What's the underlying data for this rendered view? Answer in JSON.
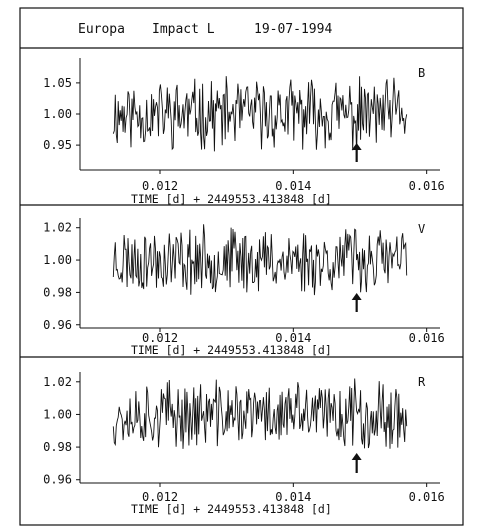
{
  "header": {
    "target": "Europa",
    "event": "Impact L",
    "date": "19-07-1994"
  },
  "chart_data": [
    {
      "type": "line",
      "band": "B",
      "xlabel": "TIME [d] + 2449553.413848 [d]",
      "x_ticks": [
        "0.012",
        "0.014",
        "0.016"
      ],
      "x_tick_values": [
        0.012,
        0.014,
        0.016
      ],
      "xlim": [
        0.0108,
        0.0162
      ],
      "y_ticks": [
        "1.05",
        "1.00",
        "0.95"
      ],
      "y_tick_values": [
        1.05,
        1.0,
        0.95
      ],
      "ylim": [
        0.91,
        1.09
      ],
      "series": [
        {
          "x_start": 0.0113,
          "x_end": 0.0157,
          "n_points": 300,
          "mean": 1.0,
          "amplitude": 0.06,
          "seed": 11,
          "dip": {
            "x": 0.01495,
            "value": 0.935
          }
        }
      ],
      "annotation": {
        "type": "arrow",
        "x": 0.01495
      },
      "grid": false
    },
    {
      "type": "line",
      "band": "V",
      "xlabel": "TIME [d] + 2449553.413848 [d]",
      "x_ticks": [
        "0.012",
        "0.014",
        "0.016"
      ],
      "x_tick_values": [
        0.012,
        0.014,
        0.016
      ],
      "xlim": [
        0.0108,
        0.0162
      ],
      "y_ticks": [
        "1.02",
        "1.00",
        "0.98",
        "0.96"
      ],
      "y_tick_values": [
        1.02,
        1.0,
        0.98,
        0.96
      ],
      "ylim": [
        0.958,
        1.026
      ],
      "series": [
        {
          "x_start": 0.0113,
          "x_end": 0.0157,
          "n_points": 300,
          "mean": 1.0,
          "amplitude": 0.022,
          "seed": 23,
          "spike": {
            "x": 0.01492,
            "value": 1.019
          }
        }
      ],
      "annotation": {
        "type": "arrow",
        "x": 0.01495
      },
      "grid": false
    },
    {
      "type": "line",
      "band": "R",
      "xlabel": "TIME [d] + 2449553.413848 [d]",
      "x_ticks": [
        "0.012",
        "0.014",
        "0.016"
      ],
      "x_tick_values": [
        0.012,
        0.014,
        0.016
      ],
      "xlim": [
        0.0108,
        0.0162
      ],
      "y_ticks": [
        "1.02",
        "1.00",
        "0.98",
        "0.96"
      ],
      "y_tick_values": [
        1.02,
        1.0,
        0.98,
        0.96
      ],
      "ylim": [
        0.958,
        1.026
      ],
      "series": [
        {
          "x_start": 0.0113,
          "x_end": 0.0157,
          "n_points": 300,
          "mean": 1.0,
          "amplitude": 0.022,
          "seed": 37,
          "spike": {
            "x": 0.01492,
            "value": 1.022
          }
        }
      ],
      "annotation": {
        "type": "arrow",
        "x": 0.01495
      },
      "grid": false
    }
  ]
}
